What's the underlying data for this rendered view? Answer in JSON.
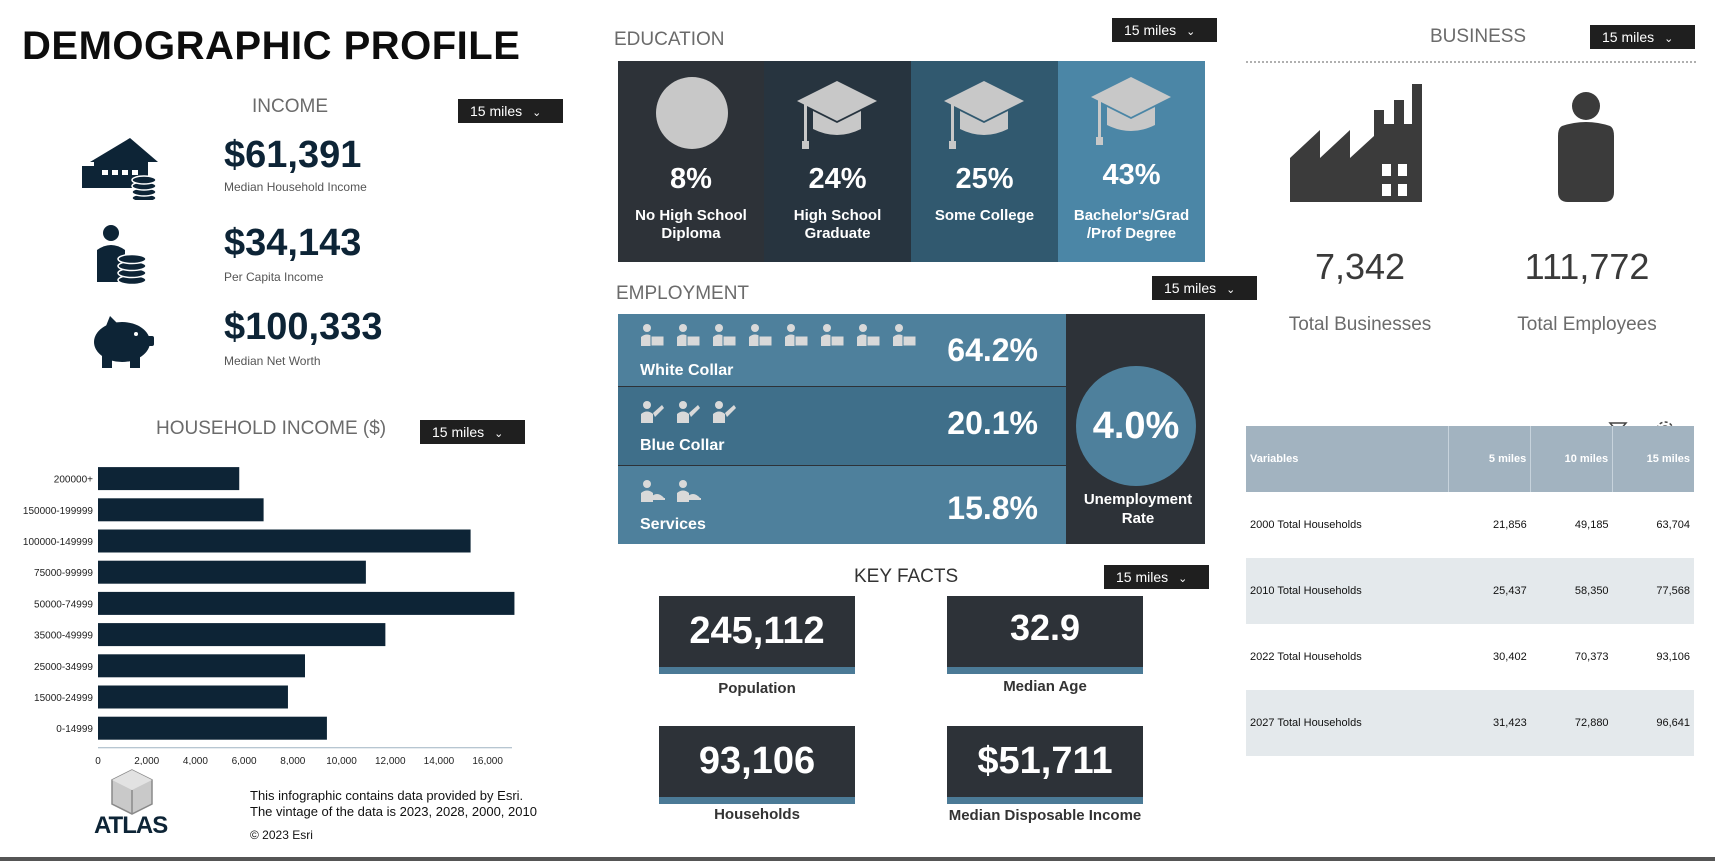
{
  "title": "DEMOGRAPHIC PROFILE",
  "radius_option": "15 miles",
  "icons": {
    "income_house": "house-coins-icon",
    "income_person": "person-coins-icon",
    "net_worth": "piggy-bank-icon",
    "factory": "factory-icon",
    "employee": "person-icon",
    "filter": "filter-icon",
    "settings": "gear-icon"
  },
  "income": {
    "heading": "INCOME",
    "items": [
      {
        "value": "$61,391",
        "label": "Median Household Income"
      },
      {
        "value": "$34,143",
        "label": "Per Capita Income"
      },
      {
        "value": "$100,333",
        "label": "Median Net Worth"
      }
    ]
  },
  "household_income": {
    "heading": "HOUSEHOLD INCOME ($)"
  },
  "chart_data": {
    "type": "bar",
    "orientation": "horizontal",
    "title": "HOUSEHOLD INCOME ($)",
    "categories": [
      "200000+",
      "150000-199999",
      "100000-149999",
      "75000-99999",
      "50000-74999",
      "35000-49999",
      "25000-34999",
      "15000-24999",
      "0-14999"
    ],
    "values": [
      5800,
      6800,
      15300,
      11000,
      17100,
      11800,
      8500,
      7800,
      9400
    ],
    "xlim": [
      0,
      17000
    ],
    "xticks": [
      "0",
      "2,000",
      "4,000",
      "6,000",
      "8,000",
      "10,000",
      "12,000",
      "14,000",
      "16,000"
    ],
    "xtick_values": [
      0,
      2000,
      4000,
      6000,
      8000,
      10000,
      12000,
      14000,
      16000
    ],
    "bar_color": "#0d2436",
    "grid": false
  },
  "education": {
    "heading": "EDUCATION",
    "items": [
      {
        "pct": "8%",
        "label": "No High School Diploma",
        "color": "#2d3238"
      },
      {
        "pct": "24%",
        "label": "High School Graduate",
        "color": "#27343f"
      },
      {
        "pct": "25%",
        "label": "Some College",
        "color": "#31596f"
      },
      {
        "pct": "43%",
        "label": "Bachelor's/Grad /Prof Degree",
        "color": "#4b86a6"
      }
    ]
  },
  "employment": {
    "heading": "EMPLOYMENT",
    "rows": [
      {
        "name": "White Collar",
        "pct": "64.2%",
        "icon_count": 8
      },
      {
        "name": "Blue Collar",
        "pct": "20.1%",
        "icon_count": 3
      },
      {
        "name": "Services",
        "pct": "15.8%",
        "icon_count": 2
      }
    ],
    "unemployment": {
      "value": "4.0%",
      "label": "Unemployment Rate"
    }
  },
  "key_facts": {
    "heading": "KEY FACTS",
    "items": [
      {
        "value": "245,112",
        "label": "Population"
      },
      {
        "value": "32.9",
        "label": "Median Age"
      },
      {
        "value": "93,106",
        "label": "Households"
      },
      {
        "value": "$51,711",
        "label": "Median Disposable Income"
      }
    ]
  },
  "business": {
    "heading": "BUSINESS",
    "total_businesses": {
      "value": "7,342",
      "label": "Total Businesses"
    },
    "total_employees": {
      "value": "111,772",
      "label": "Total Employees"
    }
  },
  "variables_table": {
    "columns": [
      "Variables",
      "5 miles",
      "10 miles",
      "15 miles"
    ],
    "rows": [
      [
        "2000 Total Households",
        "21,856",
        "49,185",
        "63,704"
      ],
      [
        "2010 Total Households",
        "25,437",
        "58,350",
        "77,568"
      ],
      [
        "2022 Total Households",
        "30,402",
        "70,373",
        "93,106"
      ],
      [
        "2027 Total Households",
        "31,423",
        "72,880",
        "96,641"
      ]
    ]
  },
  "footer": {
    "logo_text": "ATLAS",
    "note_line1": "This infographic contains data provided by Esri.",
    "note_line2": "The vintage of the data is 2023, 2028, 2000, 2010",
    "copyright": "© 2023 Esri"
  }
}
